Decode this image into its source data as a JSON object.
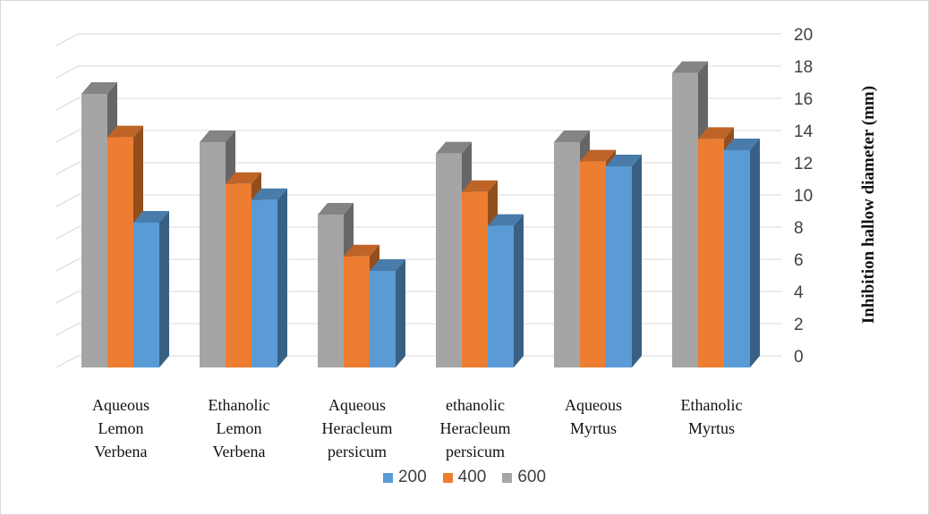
{
  "chart_data": {
    "type": "bar",
    "categories": [
      [
        "Aqueous",
        "Lemon",
        "Verbena"
      ],
      [
        "Ethanolic",
        "Lemon",
        "Verbena"
      ],
      [
        "Aqueous",
        "Heracleum",
        "persicum"
      ],
      [
        "ethanolic",
        "Heracleum",
        "persicum"
      ],
      [
        "Aqueous",
        "Myrtus"
      ],
      [
        "Ethanolic",
        "Myrtus"
      ]
    ],
    "series": [
      {
        "name": "600",
        "color": "#a5a5a5",
        "values": [
          17.0,
          14.0,
          9.5,
          13.3,
          14.0,
          18.3
        ]
      },
      {
        "name": "400",
        "color": "#ed7d31",
        "values": [
          14.3,
          11.4,
          6.9,
          10.9,
          12.8,
          14.2
        ]
      },
      {
        "name": "200",
        "color": "#5b9bd5",
        "values": [
          9.0,
          10.4,
          6.0,
          8.8,
          12.5,
          13.5
        ]
      }
    ],
    "legend_order": [
      "200",
      "400",
      "600"
    ],
    "ylabel": "Inhibition hallow diameter (mm)",
    "ylim": [
      0,
      20
    ],
    "yticks": [
      0,
      2,
      4,
      6,
      8,
      10,
      12,
      14,
      16,
      18,
      20
    ],
    "grid": true,
    "legend_position": "bottom"
  }
}
